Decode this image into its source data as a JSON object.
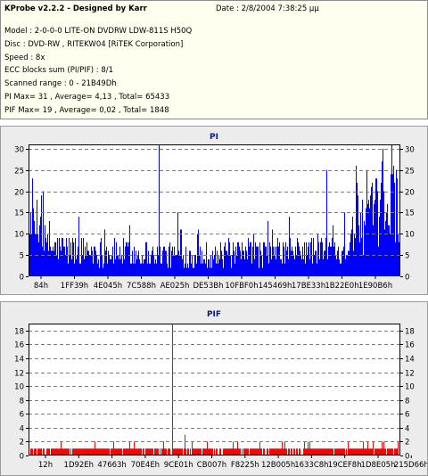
{
  "info": {
    "title": "KProbe v2.2.2 - Designed by Karr",
    "date": "Date : 2/8/2004 7:38:25 μμ",
    "lines": [
      "Model : 2-0-0-0 LITE-ON DVDRW LDW-811S   H50Q",
      "Disc : DVD-RW , RITEKW04 [RiTEK Corporation]",
      "Speed : 8x",
      "ECC blocks sum (PI/PIF) : 8/1",
      "Scanned range : 0 - 21B49Dh",
      "PI Max= 31 , Average= 4,13 , Total= 65433",
      "PIF Max= 19 , Average= 0,02 , Total= 1848"
    ]
  },
  "chart_data": [
    {
      "type": "bar",
      "title": "PI",
      "series_color": "#0000ff",
      "ylim": [
        0,
        31
      ],
      "yticks": [
        "0",
        "5",
        "10",
        "15",
        "20",
        "25",
        "30"
      ],
      "xticks": [
        "84h",
        "1FF39h",
        "4E045h",
        "7C588h",
        "AE025h",
        "DE53Bh",
        "10FBF0h",
        "145469h",
        "17BE33h",
        "1B22E0h",
        "1E90B6h"
      ],
      "grid": true,
      "profile": [
        [
          0,
          10
        ],
        [
          2,
          14
        ],
        [
          5,
          8
        ],
        [
          20,
          7
        ],
        [
          40,
          6
        ],
        [
          55,
          6
        ],
        [
          70,
          7
        ],
        [
          85,
          8
        ],
        [
          88,
          12
        ],
        [
          92,
          17
        ],
        [
          96,
          19
        ],
        [
          100,
          22
        ]
      ],
      "spikes": [
        [
          0.5,
          15
        ],
        [
          3,
          14
        ],
        [
          5.5,
          13
        ],
        [
          35,
          31
        ],
        [
          40,
          15
        ],
        [
          80,
          25
        ],
        [
          88,
          26
        ],
        [
          91,
          25
        ],
        [
          95,
          27
        ],
        [
          98,
          26
        ]
      ]
    },
    {
      "type": "bar",
      "title": "PIF",
      "series_color": "#ff0000",
      "ylim": [
        0,
        19
      ],
      "yticks": [
        "0",
        "2",
        "4",
        "6",
        "8",
        "10",
        "12",
        "14",
        "16",
        "18"
      ],
      "xticks": [
        "12h",
        "1D92Eh",
        "47663h",
        "70E4Eh",
        "9CE01h",
        "CB007h",
        "F8225h",
        "12B005h",
        "1633C8h",
        "19CEF8h",
        "1D8E05h",
        "215D66h"
      ],
      "grid": true,
      "profile": [
        [
          0,
          1
        ],
        [
          100,
          1
        ]
      ],
      "spikes": [
        [
          38.6,
          19
        ],
        [
          42,
          3
        ],
        [
          44,
          2
        ],
        [
          48,
          2
        ],
        [
          55,
          2
        ],
        [
          62,
          2
        ],
        [
          74,
          2
        ],
        [
          90,
          2
        ],
        [
          95,
          2
        ]
      ]
    }
  ]
}
